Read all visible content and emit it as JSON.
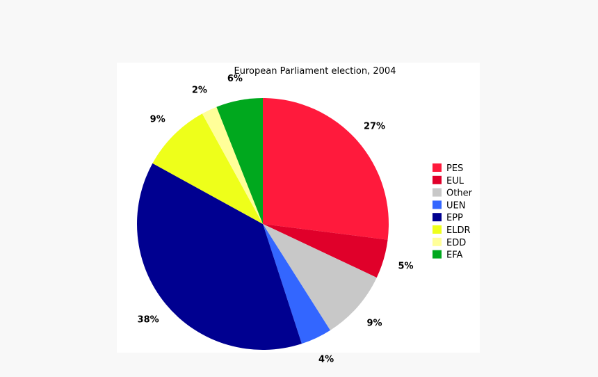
{
  "chart_data": {
    "type": "pie",
    "title": "European Parliament election, 2004",
    "legend_position": "right",
    "slices": [
      {
        "name": "PES",
        "value": 27,
        "label": "27%",
        "color": "#ff1a3c"
      },
      {
        "name": "EUL",
        "value": 5,
        "label": "5%",
        "color": "#e0002a"
      },
      {
        "name": "Other",
        "value": 9,
        "label": "9%",
        "color": "#c8c8c8"
      },
      {
        "name": "UEN",
        "value": 4,
        "label": "4%",
        "color": "#3366ff"
      },
      {
        "name": "EPP",
        "value": 38,
        "label": "38%",
        "color": "#000090"
      },
      {
        "name": "ELDR",
        "value": 9,
        "label": "9%",
        "color": "#eeff1a"
      },
      {
        "name": "EDD",
        "value": 2,
        "label": "2%",
        "color": "#ffff99"
      },
      {
        "name": "EFA",
        "value": 6,
        "label": "6%",
        "color": "#00a81e"
      }
    ]
  }
}
